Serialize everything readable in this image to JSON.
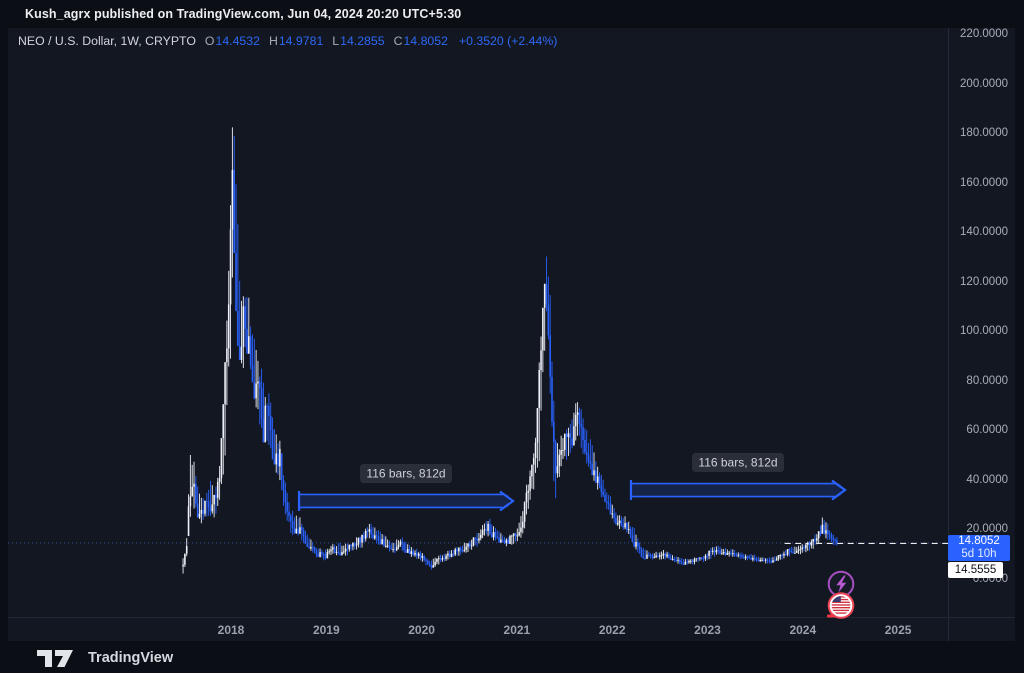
{
  "header": {
    "published_line": "Kush_agrx published on TradingView.com, Jun 04, 2024 20:20 UTC+5:30"
  },
  "legend": {
    "symbol_title": "NEO / U.S. Dollar, 1W, CRYPTO",
    "pairs": {
      "o": {
        "letter": "O",
        "value": "14.4532"
      },
      "h": {
        "letter": "H",
        "value": "14.9781"
      },
      "l": {
        "letter": "L",
        "value": "14.2855"
      },
      "c": {
        "letter": "C",
        "value": "14.8052"
      }
    },
    "change": "+0.3520 (+2.44%)"
  },
  "price_scale": {
    "ticks": [
      "220.0000",
      "200.0000",
      "180.0000",
      "160.0000",
      "140.0000",
      "120.0000",
      "100.0000",
      "80.0000",
      "60.0000",
      "40.0000",
      "20.0000",
      "0.0000"
    ]
  },
  "time_scale": {
    "ticks": [
      "2018",
      "2019",
      "2020",
      "2021",
      "2022",
      "2023",
      "2024",
      "2025"
    ]
  },
  "price_labels": {
    "current": {
      "price": "14.8052",
      "countdown": "5d 10h",
      "bg": "#2962ff"
    },
    "level": {
      "price": "14.5555",
      "bg": "#ffffff"
    }
  },
  "footer": {
    "brand": "TradingView"
  },
  "events": [
    {
      "icon": "flash-event-icon",
      "color": "#a650c0"
    },
    {
      "icon": "us-flag-event-icon",
      "color": "#ef4656"
    }
  ],
  "chart_data": {
    "type": "candlestick",
    "symbol": "NEO / U.S. Dollar",
    "interval": "1W",
    "exchange": "CRYPTO",
    "up_color": "#eef1f7",
    "down_color": "#2962ff",
    "x_axis": {
      "ticks": [
        2018,
        2019,
        2020,
        2021,
        2022,
        2023,
        2024,
        2025
      ],
      "t_start": 2017.497,
      "t_end": 2024.377
    },
    "y_axis": {
      "min": 0,
      "max": 220,
      "step": 20,
      "grid": false
    },
    "ohlc_current": {
      "open": 14.4532,
      "high": 14.9781,
      "low": 14.2855,
      "close": 14.8052,
      "change": 0.352,
      "change_pct": 2.44
    },
    "current_price": 14.8052,
    "level_line": {
      "price": 14.5555,
      "t_start": 2023.81
    },
    "bar_step_years": 0.019165,
    "annotations": [
      {
        "text": "116 bars, 812d",
        "t1": 2018.714,
        "t2": 2020.959,
        "price": 31.7
      },
      {
        "text": "116 bars, 812d",
        "t1": 2022.197,
        "t2": 2024.443,
        "price": 36.1
      }
    ],
    "price_path_tlhc": [
      [
        2017.497,
        2,
        9,
        7
      ],
      [
        2017.529,
        6,
        13,
        11
      ],
      [
        2017.571,
        25,
        56,
        38
      ],
      [
        2017.623,
        28,
        48,
        33
      ],
      [
        2017.675,
        21,
        36,
        25
      ],
      [
        2017.728,
        23,
        34,
        30
      ],
      [
        2017.78,
        24,
        42,
        28
      ],
      [
        2017.832,
        25,
        36,
        33
      ],
      [
        2017.885,
        30,
        48,
        45
      ],
      [
        2017.927,
        42,
        78,
        73
      ],
      [
        2017.969,
        68,
        122,
        115
      ],
      [
        2018.01,
        100,
        180,
        165
      ],
      [
        2018.031,
        128,
        199,
        140
      ],
      [
        2018.063,
        95,
        165,
        103
      ],
      [
        2018.094,
        84,
        126,
        92
      ],
      [
        2018.126,
        80,
        118,
        112
      ],
      [
        2018.157,
        92,
        121,
        100
      ],
      [
        2018.188,
        86,
        120,
        95
      ],
      [
        2018.22,
        78,
        102,
        85
      ],
      [
        2018.262,
        68,
        94,
        74
      ],
      [
        2018.304,
        62,
        88,
        80
      ],
      [
        2018.335,
        54,
        86,
        60
      ],
      [
        2018.377,
        55,
        76,
        70
      ],
      [
        2018.419,
        50,
        78,
        56
      ],
      [
        2018.461,
        44,
        62,
        48
      ],
      [
        2018.513,
        40,
        56,
        50
      ],
      [
        2018.565,
        25,
        42,
        29
      ],
      [
        2018.618,
        19,
        30,
        23
      ],
      [
        2018.67,
        17,
        27,
        20
      ],
      [
        2018.723,
        16,
        26,
        21
      ],
      [
        2018.775,
        14,
        22,
        16
      ],
      [
        2018.827,
        11,
        17,
        13
      ],
      [
        2018.88,
        9,
        14,
        11
      ],
      [
        2018.932,
        8,
        13,
        10
      ],
      [
        2018.984,
        7.5,
        12,
        9
      ],
      [
        2019.037,
        9,
        14,
        12
      ],
      [
        2019.141,
        9,
        15,
        11
      ],
      [
        2019.246,
        10,
        15,
        13
      ],
      [
        2019.351,
        12,
        18,
        16
      ],
      [
        2019.455,
        16,
        24,
        21
      ],
      [
        2019.508,
        15,
        22,
        17
      ],
      [
        2019.613,
        12,
        18,
        14
      ],
      [
        2019.717,
        10,
        15,
        12
      ],
      [
        2019.77,
        12,
        18,
        16
      ],
      [
        2019.822,
        10,
        16,
        12
      ],
      [
        2019.927,
        8,
        13,
        10
      ],
      [
        2020.01,
        7,
        11,
        9
      ],
      [
        2020.062,
        5,
        9,
        6
      ],
      [
        2020.105,
        3.8,
        8,
        5
      ],
      [
        2020.147,
        5,
        9,
        8
      ],
      [
        2020.24,
        7,
        11,
        9
      ],
      [
        2020.345,
        9,
        13,
        11
      ],
      [
        2020.45,
        10,
        15,
        13
      ],
      [
        2020.555,
        12,
        18,
        16
      ],
      [
        2020.639,
        15,
        22,
        19
      ],
      [
        2020.691,
        17,
        26,
        22
      ],
      [
        2020.744,
        16,
        23,
        18
      ],
      [
        2020.817,
        14,
        20,
        16
      ],
      [
        2020.89,
        13,
        18,
        15
      ],
      [
        2020.953,
        13,
        19,
        17
      ],
      [
        2021.005,
        14,
        21,
        18
      ],
      [
        2021.068,
        18,
        30,
        27
      ],
      [
        2021.11,
        24,
        41,
        38
      ],
      [
        2021.152,
        34,
        47,
        42
      ],
      [
        2021.194,
        38,
        56,
        50
      ],
      [
        2021.236,
        48,
        92,
        85
      ],
      [
        2021.277,
        80,
        122,
        112
      ],
      [
        2021.309,
        100,
        141,
        116
      ],
      [
        2021.34,
        85,
        126,
        95
      ],
      [
        2021.372,
        42,
        100,
        52
      ],
      [
        2021.403,
        32,
        60,
        42
      ],
      [
        2021.445,
        38,
        56,
        50
      ],
      [
        2021.487,
        45,
        61,
        55
      ],
      [
        2021.529,
        48,
        63,
        58
      ],
      [
        2021.571,
        50,
        68,
        53
      ],
      [
        2021.613,
        55,
        75,
        65
      ],
      [
        2021.654,
        56,
        72,
        62
      ],
      [
        2021.696,
        50,
        66,
        55
      ],
      [
        2021.738,
        45,
        60,
        50
      ],
      [
        2021.78,
        42,
        56,
        46
      ],
      [
        2021.822,
        38,
        50,
        42
      ],
      [
        2021.864,
        34,
        45,
        38
      ],
      [
        2021.916,
        30,
        40,
        33
      ],
      [
        2021.969,
        26,
        35,
        29
      ],
      [
        2022.021,
        22,
        30,
        24
      ],
      [
        2022.073,
        20,
        27,
        23
      ],
      [
        2022.126,
        19,
        26,
        22
      ],
      [
        2022.178,
        17,
        24,
        20
      ],
      [
        2022.23,
        13,
        21,
        15
      ],
      [
        2022.283,
        9.5,
        16,
        11
      ],
      [
        2022.335,
        8,
        13,
        9
      ],
      [
        2022.387,
        8,
        12,
        10
      ],
      [
        2022.44,
        8,
        11,
        9
      ],
      [
        2022.492,
        8,
        11.5,
        9.5
      ],
      [
        2022.545,
        8,
        12,
        10.5
      ],
      [
        2022.597,
        8,
        11,
        9
      ],
      [
        2022.649,
        7,
        10,
        8
      ],
      [
        2022.702,
        6,
        9,
        7
      ],
      [
        2022.754,
        5.8,
        8.5,
        6.6
      ],
      [
        2022.806,
        6,
        8.5,
        7
      ],
      [
        2022.859,
        6,
        9,
        8
      ],
      [
        2022.911,
        7,
        9.5,
        8.5
      ],
      [
        2022.974,
        7,
        10.5,
        9
      ],
      [
        2023.037,
        8,
        13.5,
        12
      ],
      [
        2023.099,
        10,
        14,
        11
      ],
      [
        2023.162,
        9,
        13,
        10
      ],
      [
        2023.225,
        9,
        12.5,
        11
      ],
      [
        2023.288,
        9,
        12,
        10
      ],
      [
        2023.351,
        8,
        11,
        9
      ],
      [
        2023.414,
        7.5,
        10.5,
        8.5
      ],
      [
        2023.476,
        7,
        10.5,
        9
      ],
      [
        2023.539,
        7,
        9.5,
        8
      ],
      [
        2023.602,
        6.5,
        9,
        7.5
      ],
      [
        2023.665,
        6.3,
        9,
        7
      ],
      [
        2023.728,
        7,
        10,
        9
      ],
      [
        2023.791,
        8,
        11.5,
        10
      ],
      [
        2023.853,
        9,
        13.5,
        12
      ],
      [
        2023.916,
        10,
        14,
        11
      ],
      [
        2023.979,
        10,
        14.5,
        12
      ],
      [
        2024.042,
        11,
        15.5,
        14
      ],
      [
        2024.105,
        12,
        17,
        16
      ],
      [
        2024.168,
        14,
        20.5,
        18
      ],
      [
        2024.209,
        17,
        26,
        22
      ],
      [
        2024.251,
        16,
        23.5,
        18
      ],
      [
        2024.293,
        15,
        20,
        16.5
      ],
      [
        2024.335,
        13,
        18,
        15
      ],
      [
        2024.377,
        13,
        16.5,
        14.8
      ]
    ]
  }
}
